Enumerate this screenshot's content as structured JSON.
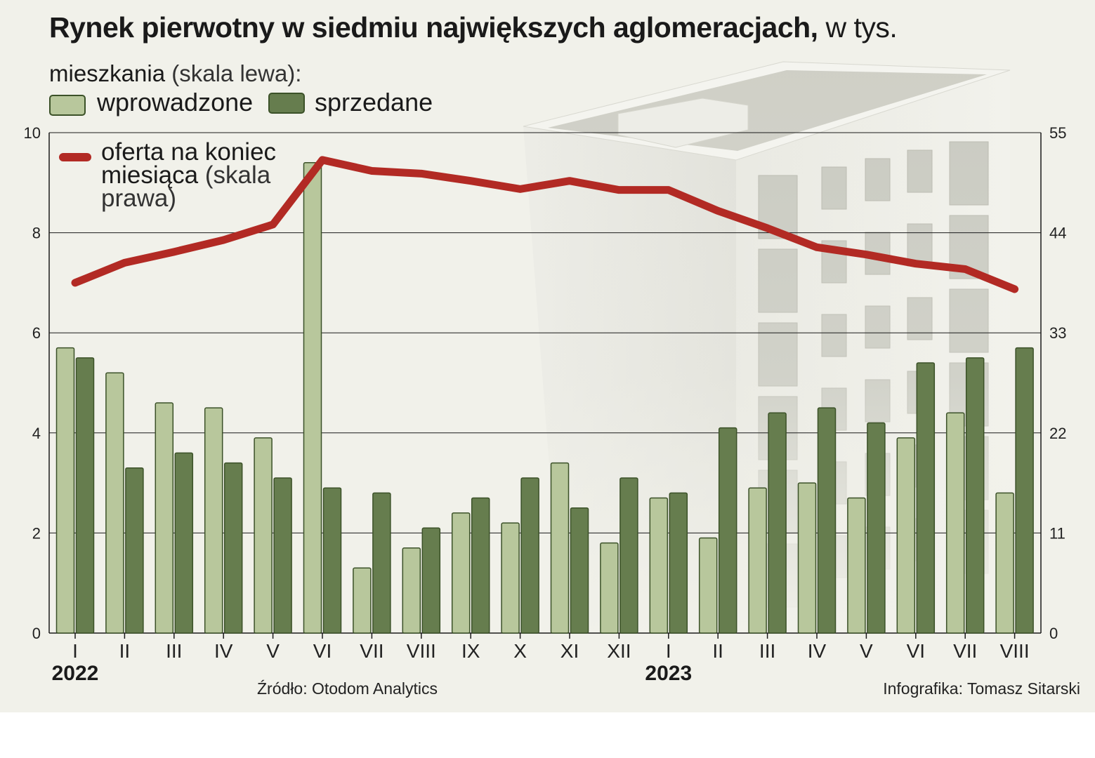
{
  "header": {
    "title_bold": "Rynek pierwotny w siedmiu największych aglomeracjach,",
    "title_light": " w tys.",
    "subtitle_main": "mieszkania",
    "subtitle_light": " (skala lewa):"
  },
  "legend": {
    "introduced": "wprowadzone",
    "sold": "sprzedane",
    "line_main": "oferta na koniec miesiąca",
    "line_light": " (skala prawa)"
  },
  "colors": {
    "introduced": "#b8c79c",
    "sold": "#667d4e",
    "bar_outline": "#3b5128",
    "line": "#b22a24",
    "background": "#f1f1ea",
    "building": "building-illustration"
  },
  "chart_data": {
    "type": "bar",
    "categories": [
      "I",
      "II",
      "III",
      "IV",
      "V",
      "VI",
      "VII",
      "VIII",
      "IX",
      "X",
      "XI",
      "XII",
      "I",
      "II",
      "III",
      "IV",
      "V",
      "VI",
      "VII",
      "VIII"
    ],
    "years": [
      {
        "label": "2022",
        "start_index": 0
      },
      {
        "label": "2023",
        "start_index": 12
      }
    ],
    "series": [
      {
        "name": "wprowadzone",
        "axis": "left",
        "type": "bar",
        "values": [
          5.7,
          5.2,
          4.6,
          4.5,
          3.9,
          9.4,
          1.3,
          1.7,
          2.4,
          2.2,
          3.4,
          1.8,
          2.7,
          1.9,
          2.9,
          3.0,
          2.7,
          3.9,
          4.4,
          2.8
        ]
      },
      {
        "name": "sprzedane",
        "axis": "left",
        "type": "bar",
        "values": [
          5.5,
          3.3,
          3.6,
          3.4,
          3.1,
          2.9,
          2.8,
          2.1,
          2.7,
          3.1,
          2.5,
          3.1,
          2.8,
          4.1,
          4.4,
          4.5,
          4.2,
          5.4,
          5.5,
          5.7
        ]
      },
      {
        "name": "oferta na koniec miesiąca",
        "axis": "right",
        "type": "line",
        "values": [
          38.5,
          40.7,
          41.9,
          43.2,
          44.9,
          52.0,
          50.8,
          50.5,
          49.7,
          48.8,
          49.7,
          48.7,
          48.7,
          46.4,
          44.5,
          42.4,
          41.6,
          40.6,
          40.0,
          37.8
        ]
      }
    ],
    "left_axis": {
      "ylim": [
        0,
        10
      ],
      "ticks": [
        "0",
        "2",
        "4",
        "6",
        "8",
        "10"
      ]
    },
    "right_axis": {
      "ylim": [
        0,
        55
      ],
      "ticks": [
        "0",
        "11",
        "22",
        "33",
        "44",
        "55"
      ]
    },
    "grid": true
  },
  "footer": {
    "source": "Źródło: Otodom Analytics",
    "credit": "Infografika: Tomasz Sitarski"
  }
}
